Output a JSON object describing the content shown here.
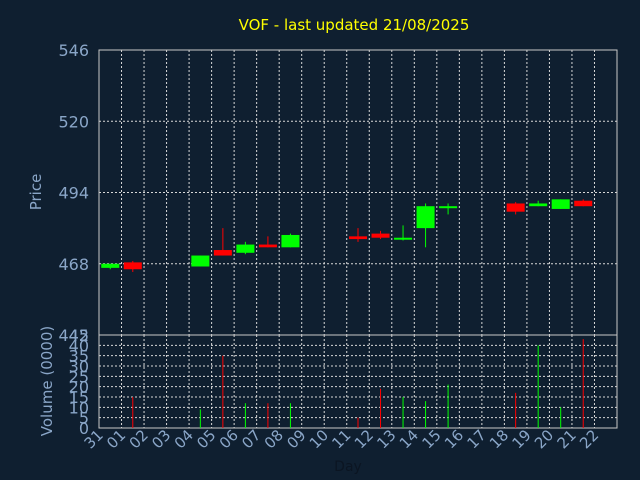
{
  "colors": {
    "background": "#0f1f30",
    "title": "#ffff00",
    "axis_text": "#8aa6c8",
    "x_label_text": "#0b1522",
    "grid": "#d8d8d8",
    "frame": "#c8c8c8",
    "up": "#00ff00",
    "down": "#ff0000"
  },
  "chart_data": [
    {
      "type": "candlestick",
      "title": "VOF - last updated 21/08/2025",
      "ylabel": "Price",
      "ylim": [
        442,
        546
      ],
      "y_ticks": [
        "546",
        "520",
        "494",
        "468",
        "442"
      ],
      "x_ticks": [
        "31",
        "01",
        "02",
        "03",
        "04",
        "05",
        "06",
        "07",
        "08",
        "09",
        "10",
        "11",
        "12",
        "13",
        "14",
        "15",
        "16",
        "17",
        "18",
        "19",
        "20",
        "21",
        "22"
      ],
      "grid": true,
      "candles": [
        {
          "day": "31",
          "open": 466.5,
          "high": 468.0,
          "low": 466.0,
          "close": 468.0
        },
        {
          "day": "01",
          "open": 468.5,
          "high": 469.0,
          "low": 465.0,
          "close": 466.0
        },
        {
          "day": "04",
          "open": 467.0,
          "high": 471.0,
          "low": 467.0,
          "close": 471.0
        },
        {
          "day": "05",
          "open": 473.0,
          "high": 481.0,
          "low": 471.0,
          "close": 471.0
        },
        {
          "day": "06",
          "open": 472.0,
          "high": 476.0,
          "low": 471.5,
          "close": 475.0
        },
        {
          "day": "07",
          "open": 475.0,
          "high": 478.0,
          "low": 474.0,
          "close": 474.0
        },
        {
          "day": "08",
          "open": 474.0,
          "high": 479.0,
          "low": 474.0,
          "close": 478.5
        },
        {
          "day": "11",
          "open": 478.0,
          "high": 481.0,
          "low": 476.0,
          "close": 477.0
        },
        {
          "day": "12",
          "open": 479.0,
          "high": 480.0,
          "low": 477.0,
          "close": 477.5
        },
        {
          "day": "13",
          "open": 477.0,
          "high": 482.0,
          "low": 476.5,
          "close": 477.5
        },
        {
          "day": "14",
          "open": 481.0,
          "high": 490.0,
          "low": 474.0,
          "close": 489.0
        },
        {
          "day": "15",
          "open": 488.5,
          "high": 490.0,
          "low": 486.0,
          "close": 489.0
        },
        {
          "day": "18",
          "open": 490.0,
          "high": 490.5,
          "low": 486.0,
          "close": 487.0
        },
        {
          "day": "19",
          "open": 489.0,
          "high": 491.0,
          "low": 489.0,
          "close": 490.0
        },
        {
          "day": "20",
          "open": 488.0,
          "high": 491.5,
          "low": 488.0,
          "close": 491.5
        },
        {
          "day": "21",
          "open": 491.0,
          "high": 491.5,
          "low": 489.0,
          "close": 489.0
        }
      ]
    },
    {
      "type": "bar",
      "ylabel": "Volume (0000)",
      "xlabel": "Day",
      "ylim": [
        0,
        45
      ],
      "y_ticks": [
        "45",
        "40",
        "35",
        "30",
        "25",
        "20",
        "15",
        "10",
        "5",
        "0"
      ],
      "categories": [
        "31",
        "01",
        "04",
        "05",
        "06",
        "07",
        "08",
        "11",
        "12",
        "13",
        "14",
        "15",
        "18",
        "19",
        "20",
        "21"
      ],
      "values": [
        0,
        15,
        9,
        35,
        12,
        12,
        12,
        5,
        19,
        15,
        13,
        21,
        17,
        40,
        10,
        43
      ],
      "direction": [
        "up",
        "down",
        "up",
        "down",
        "up",
        "down",
        "up",
        "down",
        "down",
        "up",
        "up",
        "up",
        "down",
        "up",
        "up",
        "down"
      ]
    }
  ]
}
